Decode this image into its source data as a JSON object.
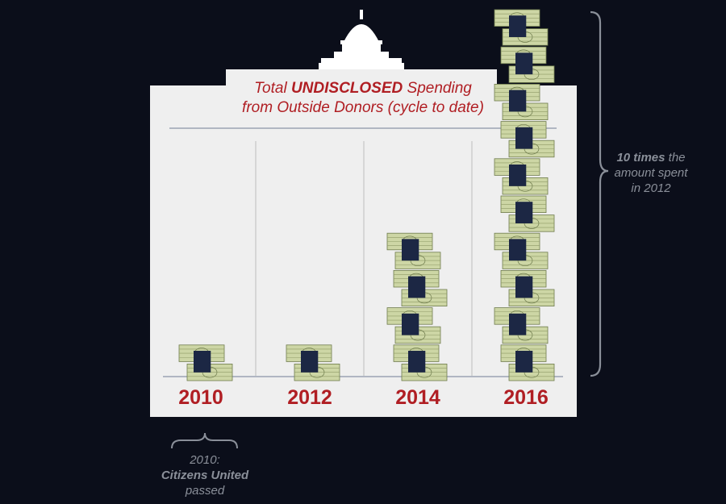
{
  "chart_data": {
    "type": "bar",
    "title": {
      "pre": "Total ",
      "emphasis": "UNDISCLOSED",
      "post": " Spending",
      "line2": "from Outside Donors (cycle to date)"
    },
    "categories": [
      "2010",
      "2012",
      "2014",
      "2016"
    ],
    "series": [
      {
        "values": [
          1,
          1,
          4,
          10
        ]
      }
    ],
    "ylim": [
      0,
      10
    ],
    "grid": false,
    "colors": {
      "background": "#0b0e1a",
      "panel": "#efefef",
      "accent": "#b01e23",
      "bill": "#cdd6a5",
      "band": "#1c2744",
      "note": "#8a8f99"
    }
  },
  "annotations": {
    "right_note": {
      "bold": "10 times",
      "line1_rest": " the",
      "line2": "amount spent",
      "line3": "in 2012"
    },
    "bottom_note": {
      "line1": "2010:",
      "bold": "Citizens United",
      "line3": "passed"
    }
  }
}
